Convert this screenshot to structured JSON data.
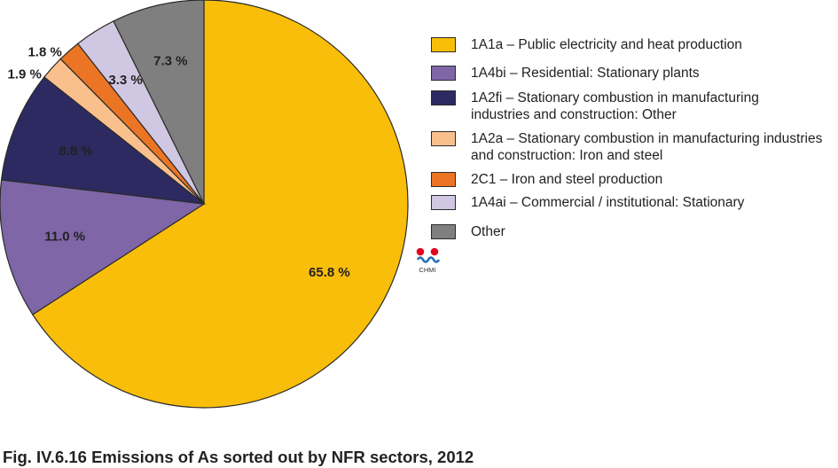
{
  "chart_data": {
    "type": "pie",
    "title": "Fig. IV.6.16  Emissions of As sorted out by NFR sectors, 2012",
    "slices": [
      {
        "label": "1A1a – Public electricity and heat production",
        "value": 65.8,
        "value_label": "65.8 %",
        "color": "#F9BE0A"
      },
      {
        "label": "1A4bi – Residential: Stationary plants",
        "value": 11.0,
        "value_label": "11.0 %",
        "color": "#7E66A7"
      },
      {
        "label": "1A2fi – Stationary combustion in manufacturing industries and construction: Other",
        "value": 8.8,
        "value_label": "8.8 %",
        "color": "#2C2A60"
      },
      {
        "label": "1A2a – Stationary combustion in manufacturing industries and construction: Iron and steel",
        "value": 1.9,
        "value_label": "1.9 %",
        "color": "#F9C08D"
      },
      {
        "label": "2C1 – Iron and steel production",
        "value": 1.8,
        "value_label": "1.8 %",
        "color": "#EB7524"
      },
      {
        "label": "1A4ai – Commercial / institutional: Stationary",
        "value": 3.3,
        "value_label": "3.3 %",
        "color": "#D0C7E2"
      },
      {
        "label": "Other",
        "value": 7.3,
        "value_label": "7.3 %",
        "color": "#7F7F7F"
      }
    ],
    "legend_position": "right"
  },
  "legend": [
    {
      "lines": [
        "1A1a – Public electricity and heat production"
      ],
      "color": "#F9BE0A"
    },
    {
      "lines": [
        "1A4bi – Residential: Stationary plants"
      ],
      "color": "#7E66A7"
    },
    {
      "lines": [
        "1A2fi – Stationary combustion in manufacturing",
        "industries and construction: Other"
      ],
      "color": "#2C2A60"
    },
    {
      "lines": [
        "1A2a – Stationary combustion in manufacturing industries",
        "and construction: Iron and steel"
      ],
      "color": "#F9C08D"
    },
    {
      "lines": [
        "2C1 – Iron and steel production"
      ],
      "color": "#EB7524"
    },
    {
      "lines": [
        "1A4ai – Commercial / institutional: Stationary"
      ],
      "color": "#D0C7E2"
    },
    {
      "lines": [
        "Other"
      ],
      "color": "#7F7F7F"
    }
  ],
  "caption": "Fig. IV.6.16  Emissions of As sorted out by NFR sectors, 2012",
  "logo": {
    "text": "CHMI",
    "colors": {
      "dots": "#E3001B",
      "wave": "#1F6DB5"
    }
  }
}
